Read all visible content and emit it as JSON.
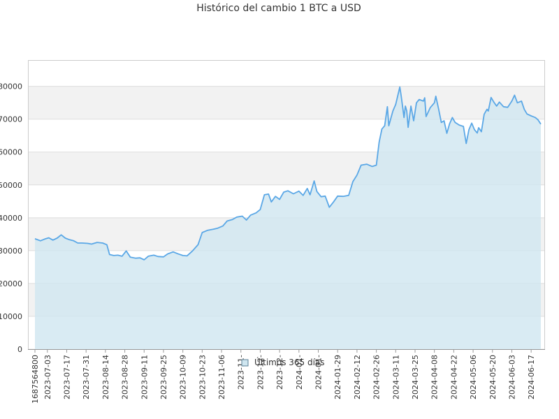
{
  "chart_data": {
    "type": "area",
    "title": "Histórico del cambio 1 BTC a USD",
    "xlabel": "",
    "ylabel": "",
    "ylim": [
      0,
      88000
    ],
    "y_ticks": [
      0,
      10000,
      20000,
      30000,
      40000,
      50000,
      60000,
      70000,
      80000
    ],
    "y_tick_labels": [
      "0",
      "10000",
      "20000",
      "30000",
      "40000",
      "50000",
      "60000",
      "70000",
      "80000"
    ],
    "x_range": [
      "2023-06-24",
      "2024-06-24"
    ],
    "x_ticks": [
      {
        "date": "2023-06-24",
        "label": "1687564800"
      },
      {
        "date": "2023-07-03",
        "label": "2023-07-03"
      },
      {
        "date": "2023-07-17",
        "label": "2023-07-17"
      },
      {
        "date": "2023-07-31",
        "label": "2023-07-31"
      },
      {
        "date": "2023-08-14",
        "label": "2023-08-14"
      },
      {
        "date": "2023-08-28",
        "label": "2023-08-28"
      },
      {
        "date": "2023-09-11",
        "label": "2023-09-11"
      },
      {
        "date": "2023-09-25",
        "label": "2023-09-25"
      },
      {
        "date": "2023-10-09",
        "label": "2023-10-09"
      },
      {
        "date": "2023-10-23",
        "label": "2023-10-23"
      },
      {
        "date": "2023-11-06",
        "label": "2023-11-06"
      },
      {
        "date": "2023-11-20",
        "label": "2023-11-"
      },
      {
        "date": "2023-12-04",
        "label": "2023-12-"
      },
      {
        "date": "2023-12-18",
        "label": "2023-12-"
      },
      {
        "date": "2024-01-01",
        "label": "2024-01-"
      },
      {
        "date": "2024-01-15",
        "label": "2024-01-"
      },
      {
        "date": "2024-01-29",
        "label": "2024-01-29"
      },
      {
        "date": "2024-02-12",
        "label": "2024-02-12"
      },
      {
        "date": "2024-02-26",
        "label": "2024-02-26"
      },
      {
        "date": "2024-03-11",
        "label": "2024-03-11"
      },
      {
        "date": "2024-03-25",
        "label": "2024-03-25"
      },
      {
        "date": "2024-04-08",
        "label": "2024-04-08"
      },
      {
        "date": "2024-04-22",
        "label": "2024-04-22"
      },
      {
        "date": "2024-05-06",
        "label": "2024-05-06"
      },
      {
        "date": "2024-05-20",
        "label": "2024-05-20"
      },
      {
        "date": "2024-06-03",
        "label": "2024-06-03"
      },
      {
        "date": "2024-06-17",
        "label": "2024-06-17"
      }
    ],
    "grid": true,
    "legend_position": "bottom-center",
    "series": [
      {
        "name": "Últimos 365 días",
        "line_color": "#5aa7e6",
        "fill_color": "#cfe6f0",
        "points": [
          [
            "2023-06-24",
            33600
          ],
          [
            "2023-06-28",
            33000
          ],
          [
            "2023-07-01",
            33500
          ],
          [
            "2023-07-04",
            33900
          ],
          [
            "2023-07-07",
            33200
          ],
          [
            "2023-07-10",
            33800
          ],
          [
            "2023-07-13",
            34800
          ],
          [
            "2023-07-16",
            33800
          ],
          [
            "2023-07-19",
            33300
          ],
          [
            "2023-07-22",
            33000
          ],
          [
            "2023-07-25",
            32300
          ],
          [
            "2023-07-28",
            32300
          ],
          [
            "2023-08-01",
            32200
          ],
          [
            "2023-08-04",
            32000
          ],
          [
            "2023-08-08",
            32500
          ],
          [
            "2023-08-12",
            32300
          ],
          [
            "2023-08-15",
            31800
          ],
          [
            "2023-08-17",
            28800
          ],
          [
            "2023-08-20",
            28500
          ],
          [
            "2023-08-23",
            28600
          ],
          [
            "2023-08-26",
            28300
          ],
          [
            "2023-08-29",
            29900
          ],
          [
            "2023-09-01",
            28000
          ],
          [
            "2023-09-05",
            27700
          ],
          [
            "2023-09-08",
            27800
          ],
          [
            "2023-09-11",
            27200
          ],
          [
            "2023-09-14",
            28300
          ],
          [
            "2023-09-18",
            28600
          ],
          [
            "2023-09-21",
            28200
          ],
          [
            "2023-09-25",
            28100
          ],
          [
            "2023-09-28",
            29000
          ],
          [
            "2023-10-02",
            29600
          ],
          [
            "2023-10-05",
            29100
          ],
          [
            "2023-10-09",
            28500
          ],
          [
            "2023-10-12",
            28400
          ],
          [
            "2023-10-16",
            29900
          ],
          [
            "2023-10-20",
            31800
          ],
          [
            "2023-10-23",
            35500
          ],
          [
            "2023-10-27",
            36200
          ],
          [
            "2023-10-31",
            36500
          ],
          [
            "2023-11-03",
            36800
          ],
          [
            "2023-11-07",
            37500
          ],
          [
            "2023-11-10",
            39000
          ],
          [
            "2023-11-14",
            39500
          ],
          [
            "2023-11-17",
            40200
          ],
          [
            "2023-11-21",
            40500
          ],
          [
            "2023-11-24",
            39300
          ],
          [
            "2023-11-27",
            40800
          ],
          [
            "2023-12-01",
            41500
          ],
          [
            "2023-12-04",
            42500
          ],
          [
            "2023-12-07",
            47000
          ],
          [
            "2023-12-10",
            47200
          ],
          [
            "2023-12-12",
            44800
          ],
          [
            "2023-12-15",
            46500
          ],
          [
            "2023-12-18",
            45600
          ],
          [
            "2023-12-21",
            47800
          ],
          [
            "2023-12-24",
            48200
          ],
          [
            "2023-12-28",
            47300
          ],
          [
            "2024-01-01",
            48100
          ],
          [
            "2024-01-04",
            46800
          ],
          [
            "2024-01-07",
            48900
          ],
          [
            "2024-01-09",
            47000
          ],
          [
            "2024-01-12",
            51200
          ],
          [
            "2024-01-14",
            48000
          ],
          [
            "2024-01-17",
            46400
          ],
          [
            "2024-01-20",
            46600
          ],
          [
            "2024-01-23",
            43200
          ],
          [
            "2024-01-26",
            44800
          ],
          [
            "2024-01-29",
            46600
          ],
          [
            "2024-02-02",
            46500
          ],
          [
            "2024-02-06",
            46800
          ],
          [
            "2024-02-09",
            51000
          ],
          [
            "2024-02-12",
            53000
          ],
          [
            "2024-02-15",
            56000
          ],
          [
            "2024-02-19",
            56300
          ],
          [
            "2024-02-23",
            55600
          ],
          [
            "2024-02-26",
            56000
          ],
          [
            "2024-02-28",
            63000
          ],
          [
            "2024-03-01",
            67000
          ],
          [
            "2024-03-03",
            68000
          ],
          [
            "2024-03-05",
            73800
          ],
          [
            "2024-03-06",
            68000
          ],
          [
            "2024-03-09",
            72500
          ],
          [
            "2024-03-11",
            74500
          ],
          [
            "2024-03-14",
            79800
          ],
          [
            "2024-03-15",
            77000
          ],
          [
            "2024-03-17",
            70500
          ],
          [
            "2024-03-18",
            74000
          ],
          [
            "2024-03-19",
            72500
          ],
          [
            "2024-03-20",
            67500
          ],
          [
            "2024-03-22",
            74000
          ],
          [
            "2024-03-24",
            69500
          ],
          [
            "2024-03-26",
            75000
          ],
          [
            "2024-03-28",
            76000
          ],
          [
            "2024-03-31",
            75500
          ],
          [
            "2024-04-01",
            76500
          ],
          [
            "2024-04-02",
            70800
          ],
          [
            "2024-04-05",
            73500
          ],
          [
            "2024-04-08",
            75000
          ],
          [
            "2024-04-09",
            77000
          ],
          [
            "2024-04-11",
            73200
          ],
          [
            "2024-04-13",
            69000
          ],
          [
            "2024-04-15",
            69500
          ],
          [
            "2024-04-17",
            65700
          ],
          [
            "2024-04-19",
            68600
          ],
          [
            "2024-04-21",
            70500
          ],
          [
            "2024-04-23",
            69000
          ],
          [
            "2024-04-26",
            68200
          ],
          [
            "2024-04-29",
            67800
          ],
          [
            "2024-05-01",
            62600
          ],
          [
            "2024-05-03",
            66800
          ],
          [
            "2024-05-05",
            68800
          ],
          [
            "2024-05-07",
            66800
          ],
          [
            "2024-05-09",
            65800
          ],
          [
            "2024-05-10",
            67400
          ],
          [
            "2024-05-12",
            66200
          ],
          [
            "2024-05-14",
            71500
          ],
          [
            "2024-05-16",
            73000
          ],
          [
            "2024-05-17",
            72500
          ],
          [
            "2024-05-19",
            76600
          ],
          [
            "2024-05-21",
            75200
          ],
          [
            "2024-05-23",
            74000
          ],
          [
            "2024-05-25",
            75200
          ],
          [
            "2024-05-28",
            73800
          ],
          [
            "2024-05-31",
            73600
          ],
          [
            "2024-06-03",
            75500
          ],
          [
            "2024-06-05",
            77300
          ],
          [
            "2024-06-07",
            75000
          ],
          [
            "2024-06-10",
            75500
          ],
          [
            "2024-06-12",
            73000
          ],
          [
            "2024-06-14",
            71600
          ],
          [
            "2024-06-17",
            71000
          ],
          [
            "2024-06-20",
            70500
          ],
          [
            "2024-06-22",
            69800
          ],
          [
            "2024-06-24",
            68500
          ]
        ]
      }
    ]
  }
}
